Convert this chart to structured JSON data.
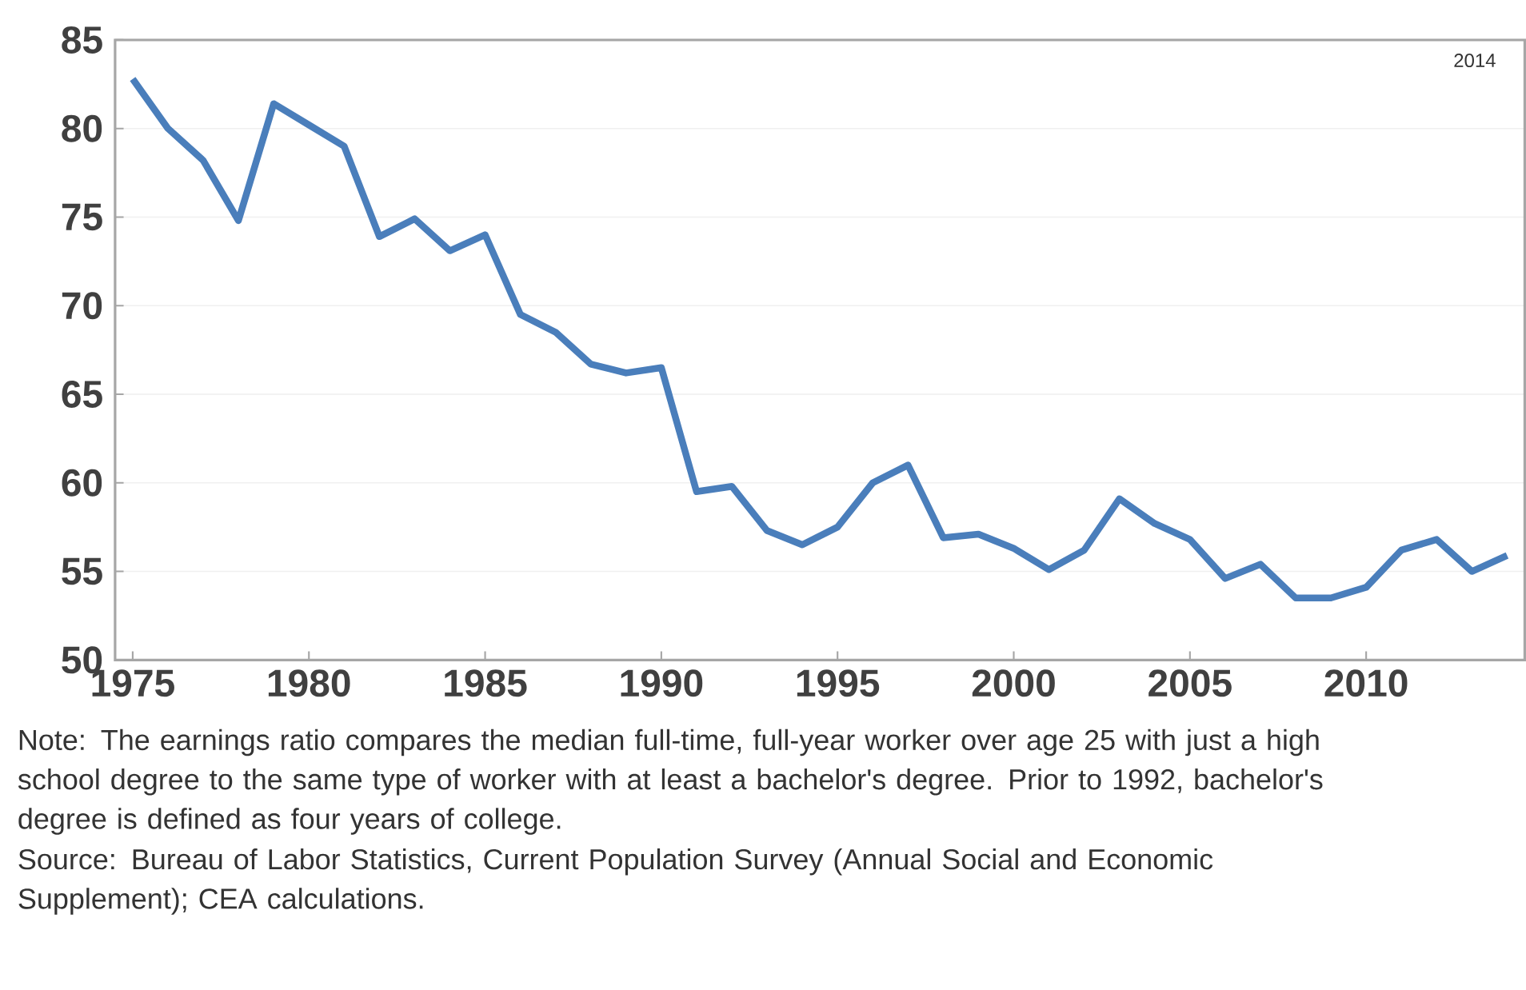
{
  "chart_data": {
    "type": "line",
    "x": [
      1975,
      1976,
      1977,
      1978,
      1979,
      1980,
      1981,
      1982,
      1983,
      1984,
      1985,
      1986,
      1987,
      1988,
      1989,
      1990,
      1991,
      1992,
      1993,
      1994,
      1995,
      1996,
      1997,
      1998,
      1999,
      2000,
      2001,
      2002,
      2003,
      2004,
      2005,
      2006,
      2007,
      2008,
      2009,
      2010,
      2011,
      2012,
      2013,
      2014
    ],
    "series": [
      {
        "color": "#4a7ebb",
        "values": [
          82.8,
          80.0,
          78.2,
          74.8,
          81.4,
          80.2,
          79.0,
          73.9,
          74.9,
          73.1,
          74.0,
          69.5,
          68.5,
          66.7,
          66.2,
          66.5,
          59.5,
          59.8,
          57.3,
          56.5,
          57.5,
          60.0,
          61.0,
          56.9,
          57.1,
          56.3,
          55.1,
          56.2,
          59.1,
          57.7,
          56.8,
          54.6,
          55.4,
          53.5,
          53.5,
          54.1,
          56.2,
          56.8,
          55.0,
          55.9
        ]
      }
    ],
    "xlim": [
      1974.5,
      2014.5
    ],
    "xticks": [
      1975,
      1980,
      1985,
      1990,
      1995,
      2000,
      2005,
      2010
    ],
    "ylim": [
      50,
      85
    ],
    "yticks": [
      50,
      55,
      60,
      65,
      70,
      75,
      80,
      85
    ],
    "grid": "y",
    "marker": "none",
    "line_style": "solid",
    "annotations": [
      "2014",
      "Note: The earnings ratio compares the median full-time, full-year worker over age 25 with just a high school degree to the same type of worker with at least a bachelor's degree. Prior to 1992, bachelor's degree is defined as four years of college.",
      "Source: Bureau of Labor Statistics, Current Population Survey (Annual Social and Economic Supplement); CEA calculations."
    ]
  }
}
